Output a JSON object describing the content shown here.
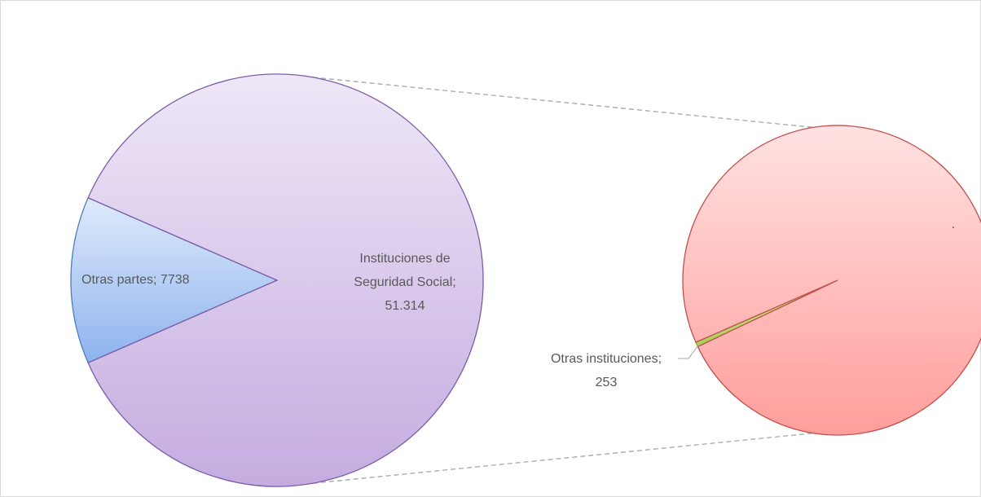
{
  "chart_data": {
    "type": "pie-of-pie",
    "primary": {
      "slices": [
        {
          "label": [
            "Otras partes; 7738"
          ],
          "value": 7738,
          "gradient": [
            "#dfeafb",
            "#8db3ee"
          ],
          "stroke": "#4a7ebb"
        },
        {
          "label": [
            "Instituciones de",
            "Seguridad Social;",
            "51.314"
          ],
          "value": 51314,
          "gradient": [
            "#efe7f7",
            "#c4ace0"
          ],
          "stroke": "#7b5ea7"
        }
      ]
    },
    "secondary": {
      "slices": [
        {
          "label": [
            "Otras instituciones;",
            "253"
          ],
          "value": 253,
          "gradient": [
            "#d6ec9c",
            "#a9cf55"
          ],
          "stroke": "#8aa84a"
        },
        {
          "label": [
            "."
          ],
          "value": 51061,
          "gradient": [
            "#ffe2e2",
            "#ff9e9b"
          ],
          "stroke": "#c0504d"
        }
      ]
    }
  }
}
